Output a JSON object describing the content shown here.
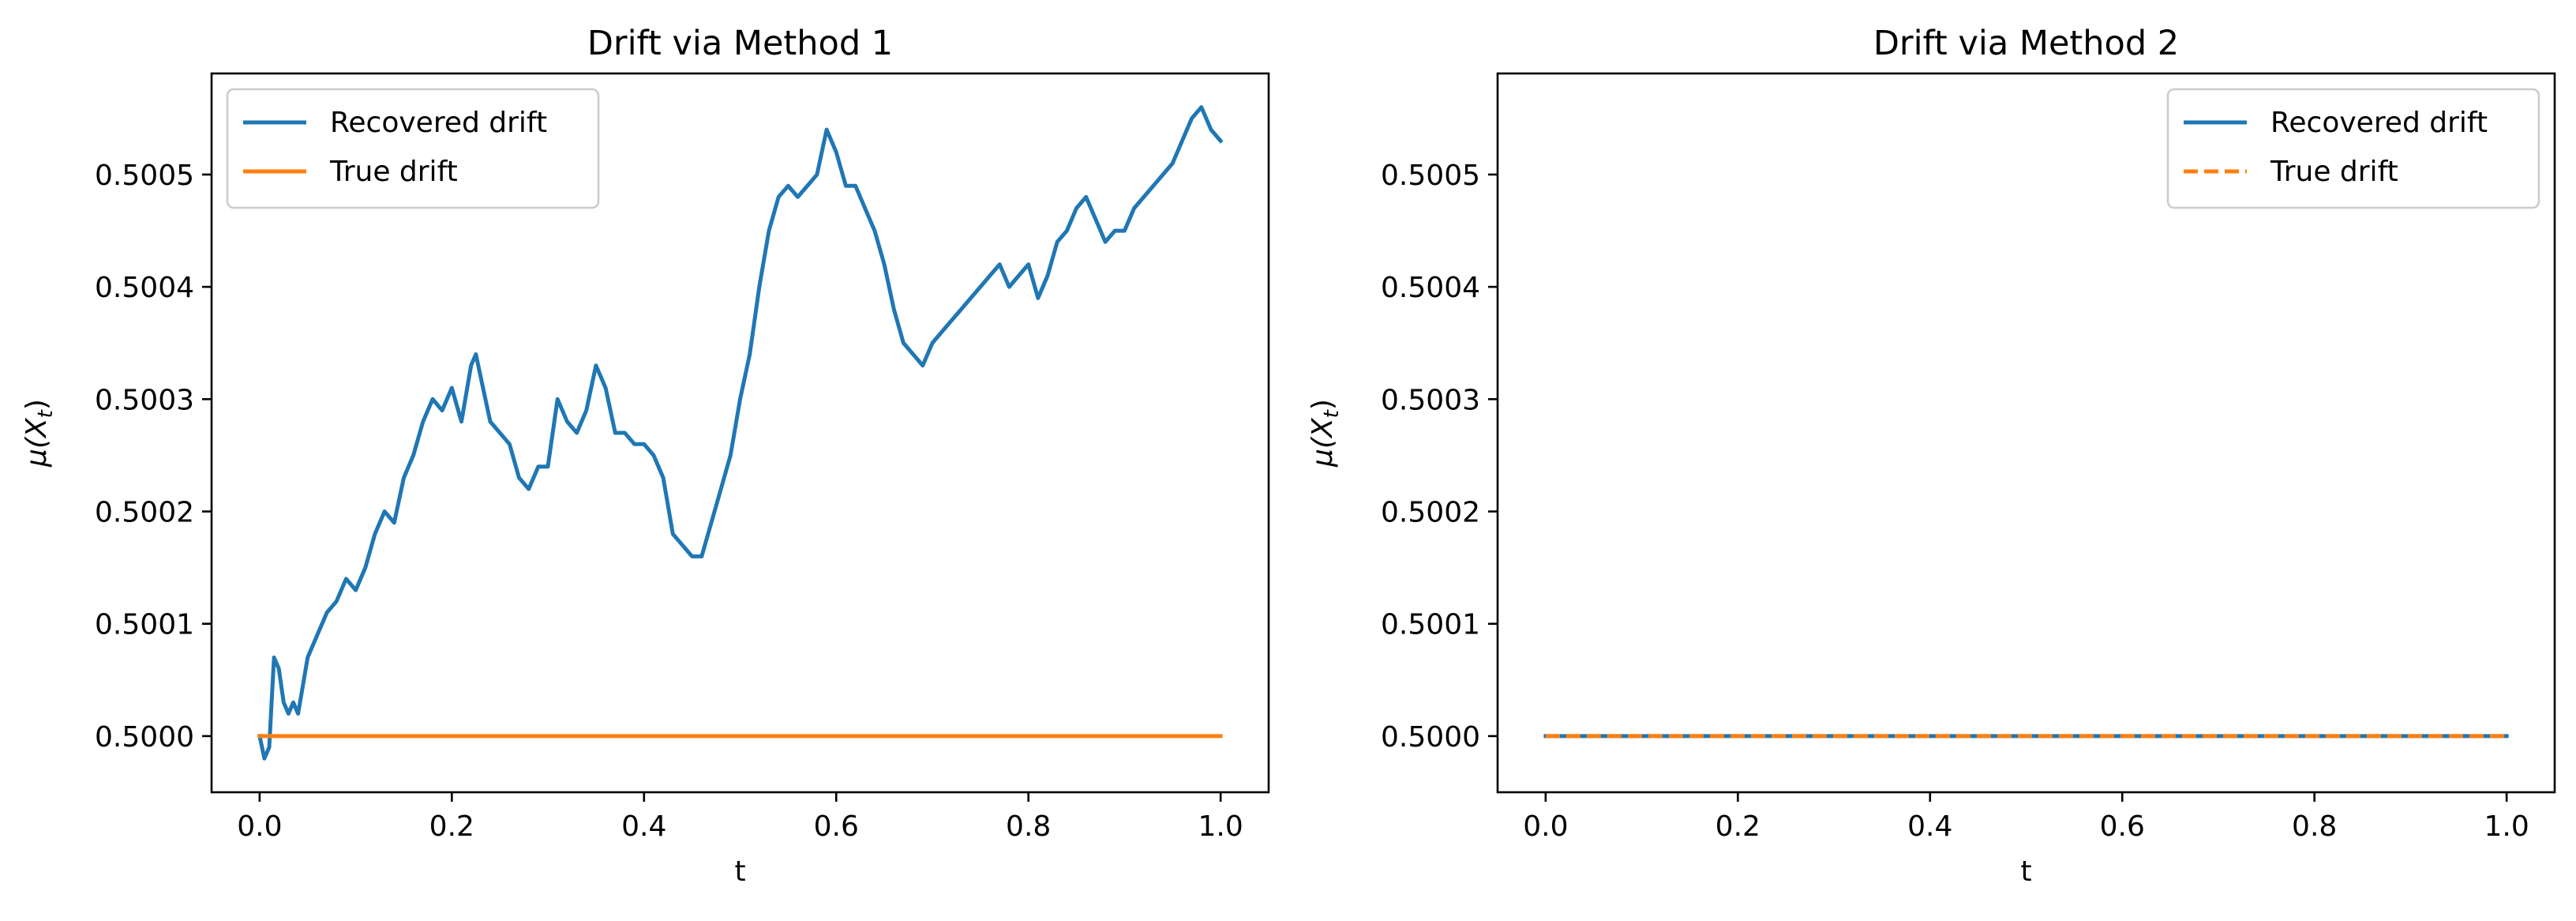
{
  "colors": {
    "recovered": "#1f77b4",
    "true": "#ff7f0e"
  },
  "chart_data": [
    {
      "type": "line",
      "title": "Drift via Method 1",
      "xlabel": "t",
      "ylabel": "μ(X_t)",
      "ylabel_parts": {
        "base": "μ(X",
        "sub": "t",
        "close": ")"
      },
      "xlim": [
        -0.05,
        1.05
      ],
      "ylim": [
        0.49995,
        0.50059
      ],
      "xticks": [
        0.0,
        0.2,
        0.4,
        0.6,
        0.8,
        1.0
      ],
      "xtick_labels": [
        "0.0",
        "0.2",
        "0.4",
        "0.6",
        "0.8",
        "1.0"
      ],
      "yticks": [
        0.5,
        0.5001,
        0.5002,
        0.5003,
        0.5004,
        0.5005
      ],
      "ytick_labels": [
        "0.5000",
        "0.5001",
        "0.5002",
        "0.5003",
        "0.5004",
        "0.5005"
      ],
      "legend_position": "top-left",
      "grid": false,
      "series": [
        {
          "name": "Recovered drift",
          "style": "solid",
          "x": [
            0.0,
            0.005,
            0.01,
            0.015,
            0.02,
            0.025,
            0.03,
            0.035,
            0.04,
            0.05,
            0.06,
            0.07,
            0.08,
            0.09,
            0.1,
            0.11,
            0.12,
            0.13,
            0.14,
            0.15,
            0.16,
            0.17,
            0.18,
            0.19,
            0.2,
            0.21,
            0.22,
            0.225,
            0.23,
            0.24,
            0.25,
            0.26,
            0.27,
            0.28,
            0.29,
            0.3,
            0.31,
            0.32,
            0.33,
            0.34,
            0.35,
            0.36,
            0.37,
            0.38,
            0.39,
            0.4,
            0.41,
            0.42,
            0.43,
            0.44,
            0.45,
            0.46,
            0.47,
            0.48,
            0.49,
            0.5,
            0.51,
            0.52,
            0.53,
            0.54,
            0.55,
            0.56,
            0.57,
            0.58,
            0.59,
            0.6,
            0.61,
            0.62,
            0.63,
            0.64,
            0.65,
            0.66,
            0.67,
            0.68,
            0.69,
            0.7,
            0.71,
            0.72,
            0.73,
            0.74,
            0.75,
            0.76,
            0.77,
            0.78,
            0.79,
            0.8,
            0.81,
            0.82,
            0.83,
            0.84,
            0.85,
            0.86,
            0.87,
            0.88,
            0.89,
            0.9,
            0.91,
            0.92,
            0.93,
            0.94,
            0.95,
            0.96,
            0.97,
            0.98,
            0.99,
            1.0
          ],
          "y": [
            0.5,
            0.49998,
            0.49999,
            0.50007,
            0.50006,
            0.50003,
            0.50002,
            0.50003,
            0.50002,
            0.50007,
            0.50009,
            0.50011,
            0.50012,
            0.50014,
            0.50013,
            0.50015,
            0.50018,
            0.5002,
            0.50019,
            0.50023,
            0.50025,
            0.50028,
            0.5003,
            0.50029,
            0.50031,
            0.50028,
            0.50033,
            0.50034,
            0.50032,
            0.50028,
            0.50027,
            0.50026,
            0.50023,
            0.50022,
            0.50024,
            0.50024,
            0.5003,
            0.50028,
            0.50027,
            0.50029,
            0.50033,
            0.50031,
            0.50027,
            0.50027,
            0.50026,
            0.50026,
            0.50025,
            0.50023,
            0.50018,
            0.50017,
            0.50016,
            0.50016,
            0.50019,
            0.50022,
            0.50025,
            0.5003,
            0.50034,
            0.5004,
            0.50045,
            0.50048,
            0.50049,
            0.50048,
            0.50049,
            0.5005,
            0.50054,
            0.50052,
            0.50049,
            0.50049,
            0.50047,
            0.50045,
            0.50042,
            0.50038,
            0.50035,
            0.50034,
            0.50033,
            0.50035,
            0.50036,
            0.50037,
            0.50038,
            0.50039,
            0.5004,
            0.50041,
            0.50042,
            0.5004,
            0.50041,
            0.50042,
            0.50039,
            0.50041,
            0.50044,
            0.50045,
            0.50047,
            0.50048,
            0.50046,
            0.50044,
            0.50045,
            0.50045,
            0.50047,
            0.50048,
            0.50049,
            0.5005,
            0.50051,
            0.50053,
            0.50055,
            0.50056,
            0.50054,
            0.50053
          ]
        },
        {
          "name": "True drift",
          "style": "solid",
          "x": [
            0.0,
            1.0
          ],
          "y": [
            0.5,
            0.5
          ]
        }
      ]
    },
    {
      "type": "line",
      "title": "Drift via Method 2",
      "xlabel": "t",
      "ylabel": "μ(X_t)",
      "ylabel_parts": {
        "base": "μ(X",
        "sub": "t",
        "close": ")"
      },
      "xlim": [
        -0.05,
        1.05
      ],
      "ylim": [
        0.49995,
        0.50059
      ],
      "xticks": [
        0.0,
        0.2,
        0.4,
        0.6,
        0.8,
        1.0
      ],
      "xtick_labels": [
        "0.0",
        "0.2",
        "0.4",
        "0.6",
        "0.8",
        "1.0"
      ],
      "yticks": [
        0.5,
        0.5001,
        0.5002,
        0.5003,
        0.5004,
        0.5005
      ],
      "ytick_labels": [
        "0.5000",
        "0.5001",
        "0.5002",
        "0.5003",
        "0.5004",
        "0.5005"
      ],
      "legend_position": "top-right",
      "grid": false,
      "series": [
        {
          "name": "Recovered drift",
          "style": "solid",
          "x": [
            0.0,
            1.0
          ],
          "y": [
            0.5,
            0.5
          ]
        },
        {
          "name": "True drift",
          "style": "dashed",
          "x": [
            0.0,
            1.0
          ],
          "y": [
            0.5,
            0.5
          ]
        }
      ]
    }
  ]
}
